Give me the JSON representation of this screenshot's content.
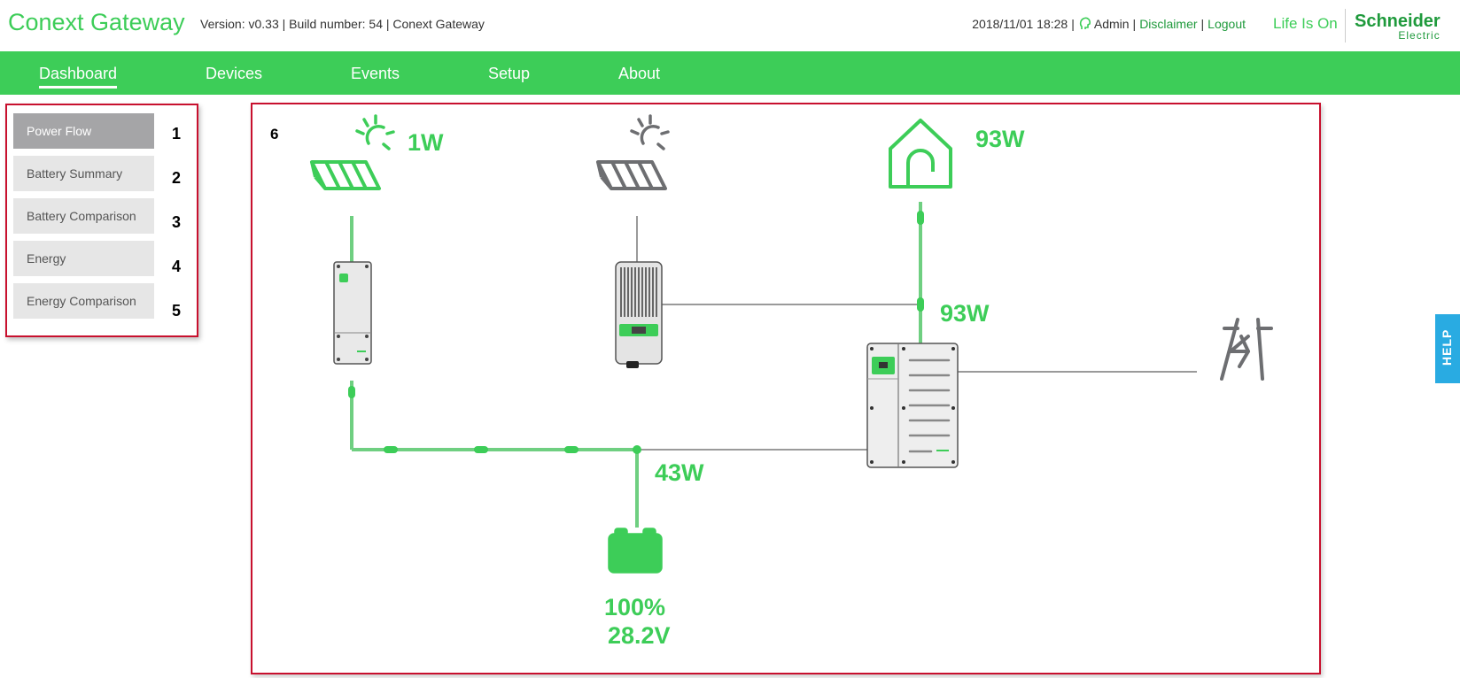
{
  "header": {
    "app_title": "Conext Gateway",
    "version_info": "Version: v0.33 | Build number: 54 | Conext Gateway",
    "datetime": "2018/11/01 18:28",
    "user": "Admin",
    "disclaimer": "Disclaimer",
    "logout": "Logout",
    "tagline": "Life Is On",
    "brand_line1": "Schneider",
    "brand_line2": "Electric",
    "accent_color": "#3dcd58"
  },
  "nav": {
    "items": [
      {
        "label": "Dashboard",
        "active": true
      },
      {
        "label": "Devices"
      },
      {
        "label": "Events"
      },
      {
        "label": "Setup"
      },
      {
        "label": "About"
      }
    ]
  },
  "sidebar": {
    "items": [
      {
        "label": "Power Flow",
        "number": "1",
        "active": true
      },
      {
        "label": "Battery Summary",
        "number": "2"
      },
      {
        "label": "Battery Comparison",
        "number": "3"
      },
      {
        "label": "Energy",
        "number": "4"
      },
      {
        "label": "Energy Comparison",
        "number": "5"
      }
    ]
  },
  "power_flow": {
    "panel_number": "6",
    "pv1_power": "1W",
    "load_power": "93W",
    "inverter_ac_power": "93W",
    "battery_power": "43W",
    "battery_soc": "100%",
    "battery_voltage": "28.2V",
    "icons": [
      "sun-icon",
      "solar-panel-icon",
      "charge-controller-icon",
      "mppt-icon",
      "house-icon",
      "inverter-icon",
      "grid-tower-icon",
      "battery-icon"
    ]
  },
  "help": {
    "label": "HELP"
  }
}
